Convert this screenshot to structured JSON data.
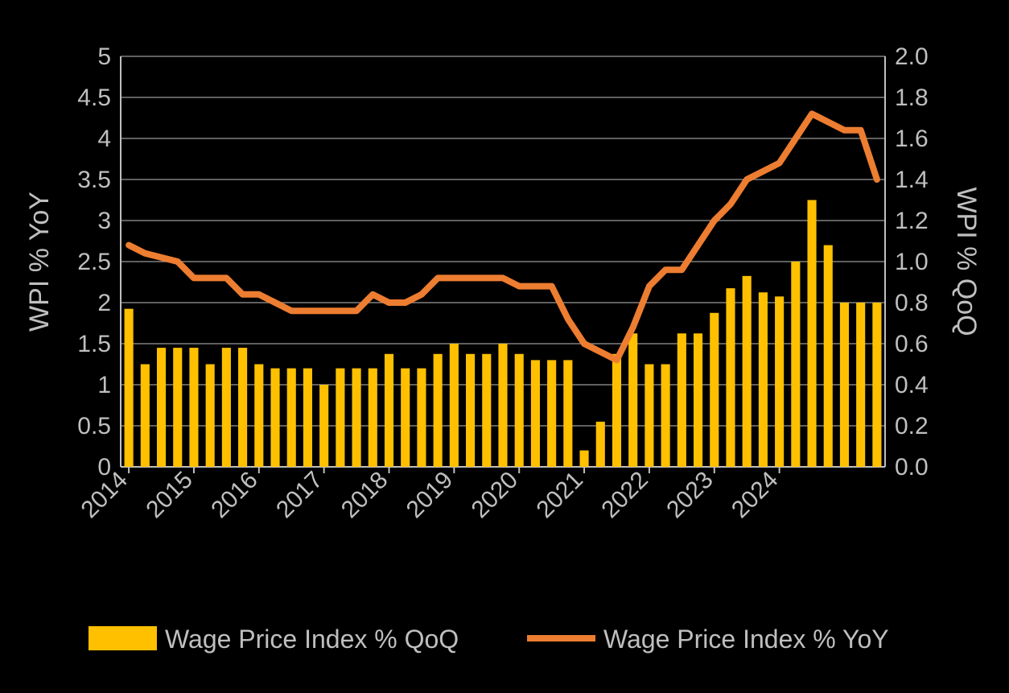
{
  "chart": {
    "type": "bar+line",
    "background_color": "#000000",
    "plot_border_color": "#bfbfbf",
    "grid_color": "#808080",
    "text_color": "#bfbfbf",
    "bar_color": "#ffc000",
    "line_color": "#ed7d31",
    "line_width": 8,
    "bar_width_ratio": 0.55,
    "y_left": {
      "label": "WPI % YoY",
      "min": 0,
      "max": 5,
      "tick_step": 0.5,
      "ticks": [
        "0",
        "0.5",
        "1",
        "1.5",
        "2",
        "2.5",
        "3",
        "3.5",
        "4",
        "4.5",
        "5"
      ]
    },
    "y_right": {
      "label": "WPI % QoQ",
      "min": 0.0,
      "max": 2.0,
      "tick_step": 0.2,
      "ticks": [
        "0.0",
        "0.2",
        "0.4",
        "0.6",
        "0.8",
        "1.0",
        "1.2",
        "1.4",
        "1.6",
        "1.8",
        "2.0"
      ]
    },
    "x_ticks_years": [
      "2014",
      "2015",
      "2016",
      "2017",
      "2018",
      "2019",
      "2020",
      "2021",
      "2022",
      "2023",
      "2024"
    ],
    "x_tick_every_n_bars": 4,
    "legend": {
      "bar_label": "Wage Price Index % QoQ",
      "line_label": "Wage Price Index % YoY"
    },
    "series": {
      "qoq_bars": [
        0.77,
        0.5,
        0.58,
        0.58,
        0.58,
        0.5,
        0.58,
        0.58,
        0.5,
        0.48,
        0.48,
        0.48,
        0.4,
        0.48,
        0.48,
        0.48,
        0.55,
        0.48,
        0.48,
        0.55,
        0.6,
        0.55,
        0.55,
        0.6,
        0.55,
        0.52,
        0.52,
        0.52,
        0.08,
        0.22,
        0.55,
        0.65,
        0.5,
        0.5,
        0.65,
        0.65,
        0.75,
        0.87,
        0.93,
        0.85,
        0.83,
        1.0,
        1.3,
        1.08,
        0.8,
        0.8,
        0.8
      ],
      "yoy_line": [
        2.7,
        2.6,
        2.55,
        2.5,
        2.3,
        2.3,
        2.3,
        2.1,
        2.1,
        2.0,
        1.9,
        1.9,
        1.9,
        1.9,
        1.9,
        2.1,
        2.0,
        2.0,
        2.1,
        2.3,
        2.3,
        2.3,
        2.3,
        2.3,
        2.2,
        2.2,
        2.2,
        1.8,
        1.5,
        1.4,
        1.3,
        1.7,
        2.2,
        2.4,
        2.4,
        2.7,
        3.0,
        3.2,
        3.5,
        3.6,
        3.7,
        4.0,
        4.3,
        4.2,
        4.1,
        4.1,
        3.5
      ]
    }
  }
}
